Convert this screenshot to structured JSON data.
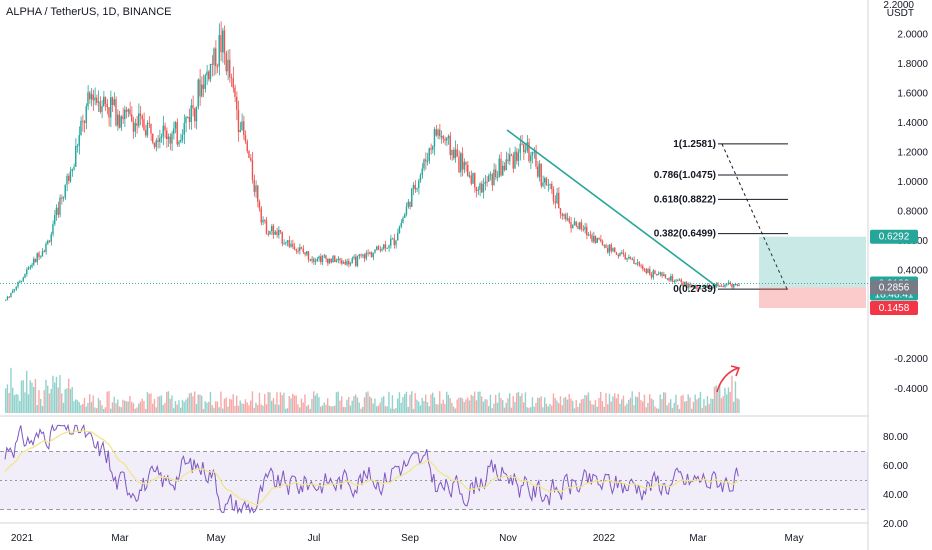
{
  "symbol_title": "ALPHA / TetherUS, 1D, BINANCE",
  "price_axis": {
    "currency": "USDT",
    "top_partial": "2.2000",
    "ticks": [
      "2.0000",
      "1.8000",
      "1.6000",
      "1.4000",
      "1.2000",
      "1.0000",
      "0.8000",
      "0.6000",
      "0.4000"
    ],
    "tick_values": [
      2.0,
      1.8,
      1.6,
      1.4,
      1.2,
      1.0,
      0.8,
      0.6,
      0.4
    ],
    "volume_ticks": [
      "-0.2000",
      "-0.4000"
    ],
    "badges": [
      {
        "text": "0.6292",
        "color": "#26a69a",
        "value": 0.6292
      },
      {
        "text": "0.3122",
        "color": "#26a69a",
        "value": 0.3122,
        "countdown": "18:48:41"
      },
      {
        "text": "0.2856",
        "color": "#787b86",
        "value": 0.2856
      },
      {
        "text": "0.1458",
        "color": "#f23645",
        "value": 0.1458
      }
    ]
  },
  "rsi_axis": {
    "ticks": [
      "80.00",
      "60.00",
      "40.00",
      "20.00"
    ],
    "tick_values": [
      80,
      60,
      40,
      20
    ]
  },
  "time_axis": {
    "labels": [
      "2021",
      "Mar",
      "May",
      "Jul",
      "Sep",
      "Nov",
      "2022",
      "Mar",
      "May"
    ]
  },
  "fib_levels": [
    {
      "label": "1(1.2581)",
      "value": 1.2581
    },
    {
      "label": "0.786(1.0475)",
      "value": 1.0475
    },
    {
      "label": "0.618(0.8822)",
      "value": 0.8822
    },
    {
      "label": "0.382(0.6499)",
      "value": 0.6499
    },
    {
      "label": "0(0.2739)",
      "value": 0.2739
    }
  ],
  "colors": {
    "up": "#26a69a",
    "down": "#ef5350",
    "trendline": "#26a69a",
    "rsi_line": "#7e57c2",
    "rsi_ma": "#f0e68c",
    "arrow": "#f23645"
  },
  "chart_data": {
    "type": "candlestick",
    "title": "ALPHA / TetherUS, 1D, BINANCE",
    "x_labels": [
      "2021",
      "Mar",
      "May",
      "Jul",
      "Sep",
      "Nov",
      "2022",
      "Mar",
      "May"
    ],
    "y_range": [
      0.1,
      2.2
    ],
    "price_path": [
      [
        "2021",
        0.2
      ],
      [
        "Feb",
        0.6
      ],
      [
        "Feb",
        1.6
      ],
      [
        "Mar",
        1.4
      ],
      [
        "Apr",
        1.3
      ],
      [
        "May",
        1.95
      ],
      [
        "May",
        0.7
      ],
      [
        "Jun",
        0.5
      ],
      [
        "Jul",
        0.45
      ],
      [
        "Aug",
        0.6
      ],
      [
        "Sep",
        1.35
      ],
      [
        "Oct",
        0.95
      ],
      [
        "Nov",
        1.25
      ],
      [
        "Dec",
        0.75
      ],
      [
        "2022",
        0.55
      ],
      [
        "Feb",
        0.38
      ],
      [
        "Mar",
        0.28
      ],
      [
        "Mar",
        0.31
      ]
    ],
    "last_price": 0.3122,
    "rsi": {
      "ticks": [
        80,
        60,
        40,
        20
      ],
      "last": 55
    }
  }
}
